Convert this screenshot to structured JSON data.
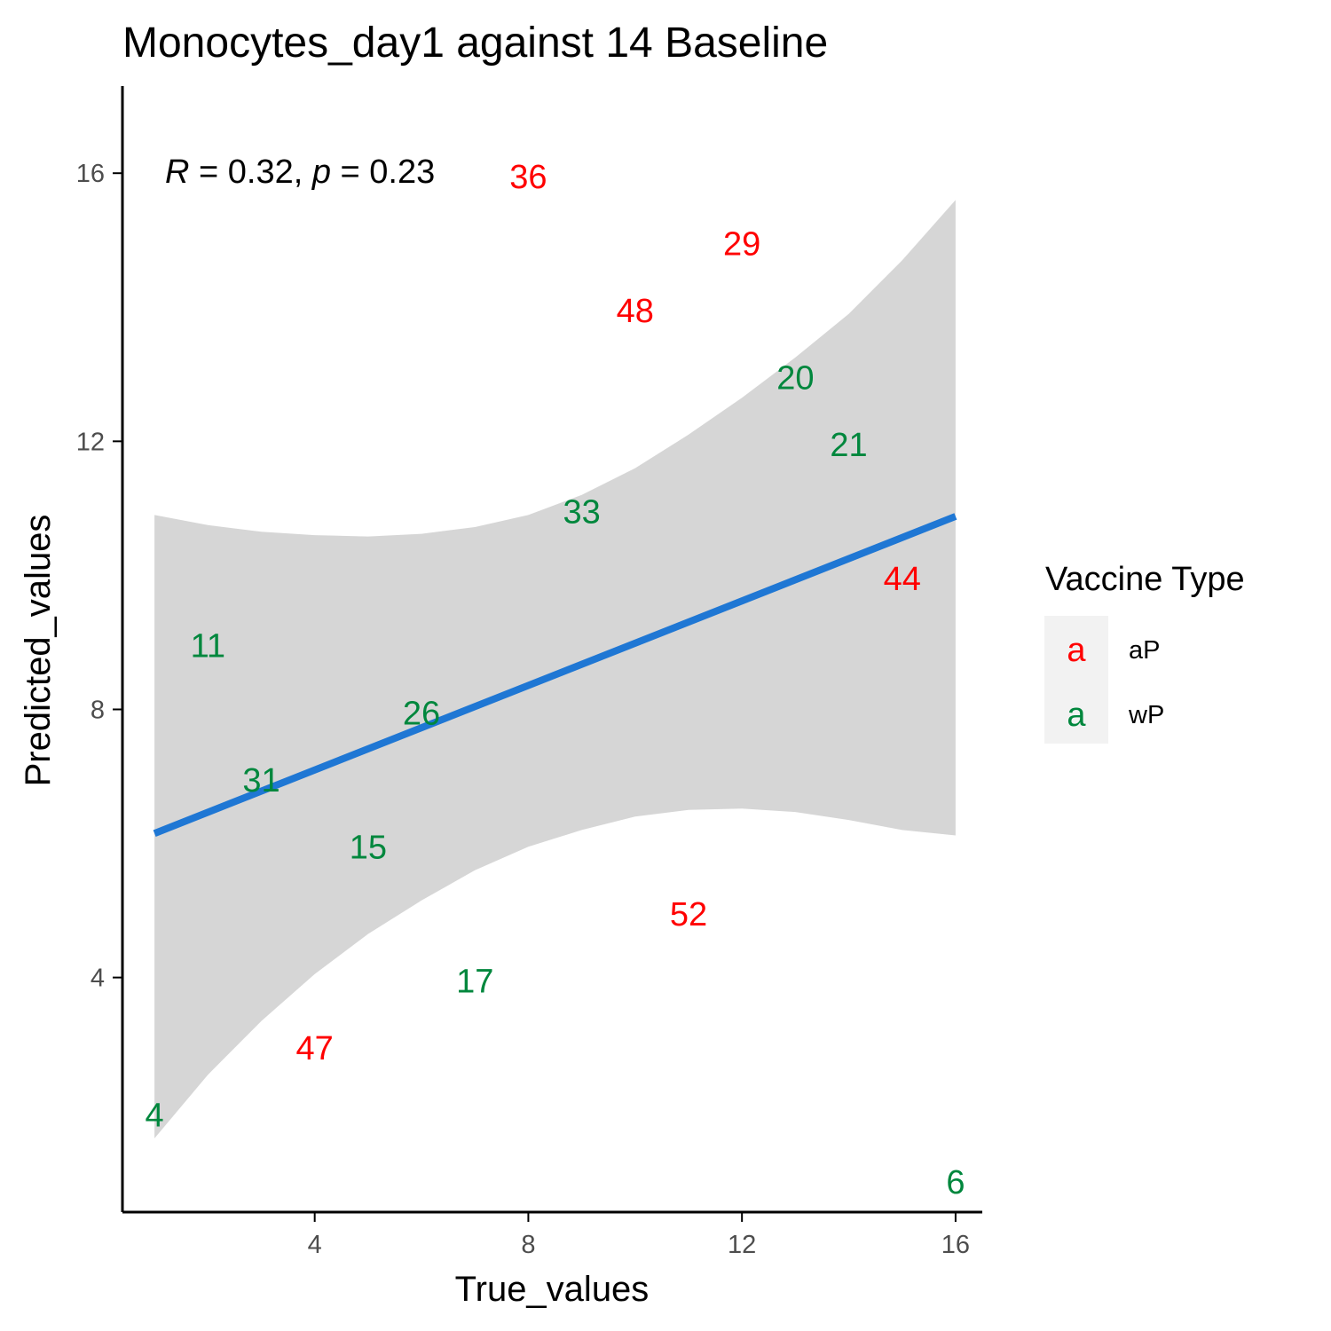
{
  "chart_data": {
    "type": "scatter",
    "title": "Monocytes_day1 against 14 Baseline",
    "xlabel": "True_values",
    "ylabel": "Predicted_values",
    "xlim": [
      0.4,
      16.5
    ],
    "ylim": [
      0.5,
      17.3
    ],
    "xticks": [
      4,
      8,
      12,
      16
    ],
    "yticks": [
      4,
      8,
      12,
      16
    ],
    "stat_annotation": {
      "r_symbol": "R",
      "r_text": " = 0.32, ",
      "p_symbol": "p",
      "p_text": " = 0.23"
    },
    "regression": {
      "x": [
        1,
        16
      ],
      "y": [
        6.15,
        10.88
      ],
      "color": "#1f77d4"
    },
    "confidence_band": {
      "x": [
        1,
        2,
        3,
        4,
        5,
        6,
        7,
        8,
        9,
        10,
        11,
        12,
        13,
        14,
        15,
        16
      ],
      "upper": [
        10.9,
        10.75,
        10.65,
        10.6,
        10.58,
        10.62,
        10.72,
        10.9,
        11.2,
        11.6,
        12.1,
        12.65,
        13.25,
        13.9,
        14.7,
        15.6
      ],
      "lower": [
        1.6,
        2.55,
        3.35,
        4.05,
        4.65,
        5.15,
        5.6,
        5.95,
        6.2,
        6.4,
        6.5,
        6.52,
        6.47,
        6.35,
        6.2,
        6.12
      ],
      "color": "#d6d6d6"
    },
    "series": [
      {
        "name": "aP",
        "color": "#ff0000",
        "points": [
          {
            "label": "36",
            "x": 8,
            "y": 15.95
          },
          {
            "label": "29",
            "x": 12,
            "y": 14.95
          },
          {
            "label": "48",
            "x": 10,
            "y": 13.95
          },
          {
            "label": "44",
            "x": 15,
            "y": 9.95
          },
          {
            "label": "52",
            "x": 11,
            "y": 4.95
          },
          {
            "label": "47",
            "x": 4,
            "y": 2.95
          }
        ]
      },
      {
        "name": "wP",
        "color": "#00873d",
        "points": [
          {
            "label": "20",
            "x": 13,
            "y": 12.95
          },
          {
            "label": "21",
            "x": 14,
            "y": 11.95
          },
          {
            "label": "33",
            "x": 9,
            "y": 10.95
          },
          {
            "label": "11",
            "x": 2,
            "y": 8.95
          },
          {
            "label": "26",
            "x": 6,
            "y": 7.95
          },
          {
            "label": "31",
            "x": 3,
            "y": 6.95
          },
          {
            "label": "15",
            "x": 5,
            "y": 5.95
          },
          {
            "label": "17",
            "x": 7,
            "y": 3.95
          },
          {
            "label": "4",
            "x": 1,
            "y": 1.95
          },
          {
            "label": "6",
            "x": 16,
            "y": 0.95
          }
        ]
      }
    ],
    "legend": {
      "title": "Vaccine Type",
      "key_glyph": "a",
      "entries": [
        {
          "name": "aP",
          "color": "#ff0000"
        },
        {
          "name": "wP",
          "color": "#00873d"
        }
      ],
      "placement": "right"
    }
  }
}
